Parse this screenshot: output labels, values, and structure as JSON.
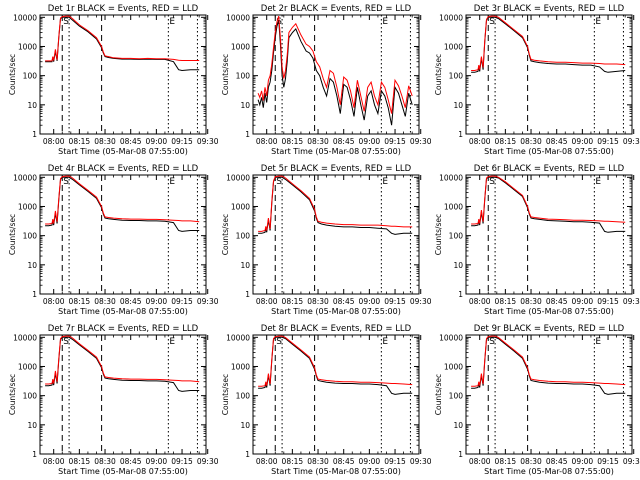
{
  "colors": {
    "events": "#000000",
    "lld": "#ff0000",
    "background": "#ffffff",
    "axis": "#000000"
  },
  "shared": {
    "title_suffix": "BLACK = Events, RED = LLD",
    "xlabel": "Start Time (05-Mar-08 07:55:00)",
    "ylabel": "Counts/sec",
    "x_ticks": [
      "08:00",
      "08:15",
      "08:30",
      "08:45",
      "09:00",
      "09:15",
      "09:30"
    ],
    "y_ticks": [
      "1",
      "10",
      "100",
      "1000",
      "10000"
    ],
    "ylim": [
      1,
      12000
    ],
    "yscale": "log",
    "xlim_minutes": [
      -3,
      94
    ],
    "markers": [
      {
        "label": "S",
        "linestyle": "dashed",
        "x": 10
      },
      {
        "label": "",
        "linestyle": "dotted",
        "x": 14
      },
      {
        "label": "",
        "linestyle": "dashed",
        "x": 33
      },
      {
        "label": "E",
        "linestyle": "dotted",
        "x": 72
      },
      {
        "label": "",
        "linestyle": "dotted",
        "x": 89
      }
    ]
  },
  "chart_data": [
    {
      "title": "Det 1r",
      "type": "line",
      "x_minutes": [
        0,
        2,
        4,
        4.5,
        5,
        6,
        7,
        8,
        9,
        10,
        12,
        14,
        16,
        20,
        25,
        30,
        33,
        34,
        35,
        37,
        40,
        45,
        50,
        55,
        60,
        65,
        70,
        75,
        78,
        80,
        85,
        90
      ],
      "series": [
        {
          "name": "BLACK = Events",
          "values": [
            300,
            300,
            300,
            420,
            300,
            700,
            320,
            2000,
            9000,
            10000,
            10000,
            10000,
            8000,
            5000,
            3200,
            1800,
            900,
            600,
            450,
            420,
            390,
            370,
            370,
            360,
            370,
            360,
            360,
            300,
            160,
            150,
            160,
            160
          ]
        },
        {
          "name": "RED = LLD",
          "values": [
            320,
            320,
            320,
            450,
            330,
            800,
            350,
            2200,
            9500,
            10500,
            11000,
            11000,
            9000,
            5500,
            3500,
            2000,
            1000,
            650,
            480,
            450,
            410,
            390,
            390,
            380,
            390,
            380,
            380,
            360,
            340,
            330,
            330,
            330
          ]
        }
      ]
    },
    {
      "title": "Det 2r",
      "type": "line",
      "x_minutes": [
        0,
        1,
        2,
        3,
        4,
        5,
        6,
        7,
        8,
        9,
        10,
        11,
        12,
        13,
        14,
        15,
        16,
        17,
        18,
        20,
        22,
        25,
        28,
        30,
        32,
        34,
        36,
        38,
        40,
        42,
        44,
        46,
        48,
        50,
        52,
        54,
        56,
        58,
        60,
        62,
        64,
        66,
        68,
        70,
        72,
        74,
        76,
        78,
        80,
        82,
        84,
        86,
        88,
        90
      ],
      "series": [
        {
          "name": "BLACK = Events",
          "values": [
            15,
            10,
            18,
            8,
            25,
            12,
            40,
            60,
            150,
            600,
            2000,
            5000,
            8000,
            1200,
            100,
            40,
            80,
            300,
            2000,
            3000,
            4000,
            1500,
            700,
            600,
            400,
            150,
            100,
            40,
            20,
            80,
            60,
            20,
            5,
            50,
            40,
            15,
            4,
            40,
            10,
            3,
            20,
            30,
            10,
            5,
            30,
            20,
            8,
            2,
            40,
            25,
            10,
            4,
            25,
            10
          ]
        },
        {
          "name": "RED = LLD",
          "values": [
            25,
            18,
            30,
            14,
            40,
            20,
            70,
            100,
            250,
            900,
            3000,
            7000,
            11000,
            2000,
            200,
            80,
            150,
            500,
            3000,
            4500,
            6000,
            2500,
            1200,
            1000,
            700,
            300,
            200,
            80,
            40,
            150,
            120,
            40,
            10,
            90,
            70,
            30,
            8,
            70,
            20,
            6,
            40,
            60,
            20,
            10,
            60,
            40,
            15,
            5,
            70,
            45,
            20,
            8,
            45,
            20
          ]
        }
      ]
    },
    {
      "title": "Det 3r",
      "type": "line",
      "x_minutes": [
        0,
        2,
        4,
        4.5,
        5,
        6,
        7,
        8,
        9,
        10,
        12,
        14,
        16,
        20,
        25,
        30,
        33,
        34,
        35,
        37,
        40,
        45,
        50,
        55,
        60,
        65,
        70,
        75,
        78,
        80,
        85,
        90
      ],
      "series": [
        {
          "name": "BLACK = Events",
          "values": [
            130,
            130,
            140,
            200,
            140,
            400,
            160,
            1500,
            8000,
            10000,
            10000,
            10000,
            9000,
            6000,
            3500,
            2000,
            900,
            500,
            320,
            300,
            280,
            260,
            250,
            250,
            240,
            230,
            230,
            200,
            140,
            130,
            140,
            150
          ]
        },
        {
          "name": "RED = LLD",
          "values": [
            150,
            150,
            160,
            230,
            160,
            450,
            190,
            1700,
            8500,
            10500,
            11000,
            11000,
            10000,
            6500,
            3800,
            2200,
            1000,
            550,
            360,
            340,
            320,
            300,
            290,
            290,
            280,
            270,
            270,
            260,
            250,
            250,
            250,
            240
          ]
        }
      ]
    },
    {
      "title": "Det 4r",
      "type": "line",
      "x_minutes": [
        0,
        2,
        4,
        4.5,
        5,
        6,
        7,
        8,
        9,
        10,
        12,
        14,
        16,
        20,
        25,
        30,
        33,
        34,
        35,
        37,
        40,
        45,
        50,
        55,
        60,
        65,
        70,
        75,
        78,
        80,
        85,
        90
      ],
      "series": [
        {
          "name": "BLACK = Events",
          "values": [
            220,
            220,
            230,
            330,
            230,
            600,
            260,
            1700,
            8500,
            10000,
            10000,
            10000,
            8500,
            5500,
            3300,
            1900,
            900,
            550,
            400,
            380,
            360,
            340,
            330,
            330,
            320,
            320,
            310,
            280,
            150,
            140,
            150,
            150
          ]
        },
        {
          "name": "RED = LLD",
          "values": [
            250,
            250,
            260,
            370,
            260,
            700,
            300,
            1900,
            9000,
            10500,
            11000,
            11000,
            9500,
            6000,
            3600,
            2100,
            1000,
            600,
            440,
            420,
            400,
            380,
            370,
            370,
            360,
            360,
            350,
            340,
            330,
            320,
            320,
            300
          ]
        }
      ]
    },
    {
      "title": "Det 5r",
      "type": "line",
      "x_minutes": [
        0,
        2,
        4,
        4.5,
        5,
        6,
        7,
        8,
        9,
        10,
        12,
        14,
        16,
        20,
        25,
        30,
        33,
        34,
        35,
        37,
        40,
        45,
        50,
        55,
        60,
        65,
        70,
        75,
        78,
        80,
        85,
        90
      ],
      "series": [
        {
          "name": "BLACK = Events",
          "values": [
            120,
            120,
            130,
            180,
            130,
            350,
            150,
            1300,
            7000,
            10000,
            10000,
            10000,
            8500,
            5500,
            3200,
            1700,
            700,
            400,
            280,
            250,
            230,
            210,
            200,
            200,
            190,
            190,
            180,
            170,
            120,
            110,
            120,
            120
          ]
        },
        {
          "name": "RED = LLD",
          "values": [
            140,
            140,
            150,
            210,
            150,
            400,
            170,
            1500,
            7500,
            10500,
            11000,
            11000,
            9500,
            6000,
            3500,
            1900,
            800,
            440,
            310,
            290,
            270,
            250,
            240,
            240,
            230,
            230,
            230,
            220,
            210,
            210,
            200,
            200
          ]
        }
      ]
    },
    {
      "title": "Det 6r",
      "type": "line",
      "x_minutes": [
        0,
        2,
        4,
        4.5,
        5,
        6,
        7,
        8,
        9,
        10,
        12,
        14,
        16,
        20,
        25,
        30,
        33,
        34,
        35,
        37,
        40,
        45,
        50,
        55,
        60,
        65,
        70,
        75,
        78,
        80,
        85,
        90
      ],
      "series": [
        {
          "name": "BLACK = Events",
          "values": [
            220,
            220,
            230,
            330,
            230,
            650,
            260,
            1800,
            9000,
            10000,
            10000,
            10000,
            9500,
            6500,
            3800,
            2200,
            900,
            550,
            400,
            380,
            360,
            330,
            320,
            310,
            300,
            300,
            290,
            270,
            140,
            130,
            140,
            140
          ]
        },
        {
          "name": "RED = LLD",
          "values": [
            250,
            250,
            260,
            370,
            260,
            750,
            300,
            2000,
            9500,
            10500,
            11000,
            11000,
            10000,
            7000,
            4100,
            2400,
            1000,
            600,
            440,
            420,
            400,
            370,
            360,
            350,
            340,
            340,
            330,
            320,
            310,
            310,
            300,
            290
          ]
        }
      ]
    },
    {
      "title": "Det 7r",
      "type": "line",
      "x_minutes": [
        0,
        2,
        4,
        4.5,
        5,
        6,
        7,
        8,
        9,
        10,
        12,
        14,
        16,
        20,
        25,
        30,
        33,
        34,
        35,
        37,
        40,
        45,
        50,
        55,
        60,
        65,
        70,
        75,
        78,
        80,
        85,
        90
      ],
      "series": [
        {
          "name": "BLACK = Events",
          "values": [
            220,
            220,
            230,
            330,
            230,
            600,
            260,
            1700,
            8500,
            10000,
            10000,
            10000,
            8500,
            5500,
            3300,
            1900,
            900,
            550,
            400,
            380,
            360,
            340,
            330,
            330,
            320,
            320,
            310,
            280,
            150,
            140,
            150,
            150
          ]
        },
        {
          "name": "RED = LLD",
          "values": [
            250,
            250,
            260,
            370,
            260,
            700,
            300,
            1900,
            9000,
            10500,
            11000,
            11000,
            9500,
            6000,
            3600,
            2100,
            1000,
            600,
            440,
            420,
            400,
            380,
            370,
            370,
            360,
            360,
            350,
            340,
            330,
            320,
            320,
            300
          ]
        }
      ]
    },
    {
      "title": "Det 8r",
      "type": "line",
      "x_minutes": [
        0,
        2,
        4,
        4.5,
        5,
        6,
        7,
        8,
        9,
        10,
        12,
        14,
        16,
        20,
        25,
        30,
        33,
        34,
        35,
        37,
        40,
        45,
        50,
        55,
        60,
        65,
        70,
        75,
        78,
        80,
        85,
        90
      ],
      "series": [
        {
          "name": "BLACK = Events",
          "values": [
            180,
            180,
            190,
            270,
            190,
            500,
            220,
            1600,
            8500,
            10000,
            10000,
            10000,
            9000,
            5800,
            3400,
            1900,
            800,
            480,
            330,
            310,
            290,
            270,
            260,
            260,
            250,
            250,
            240,
            220,
            120,
            110,
            120,
            120
          ]
        },
        {
          "name": "RED = LLD",
          "values": [
            210,
            210,
            220,
            300,
            220,
            570,
            250,
            1800,
            9000,
            10500,
            11000,
            11000,
            9800,
            6300,
            3700,
            2100,
            900,
            520,
            370,
            350,
            330,
            310,
            300,
            300,
            290,
            290,
            280,
            270,
            260,
            260,
            250,
            240
          ]
        }
      ]
    },
    {
      "title": "Det 9r",
      "type": "line",
      "x_minutes": [
        0,
        2,
        4,
        4.5,
        5,
        6,
        7,
        8,
        9,
        10,
        12,
        14,
        16,
        20,
        25,
        30,
        33,
        34,
        35,
        37,
        40,
        45,
        50,
        55,
        60,
        65,
        70,
        75,
        78,
        80,
        85,
        90
      ],
      "series": [
        {
          "name": "BLACK = Events",
          "values": [
            180,
            180,
            190,
            270,
            190,
            500,
            220,
            1600,
            8500,
            10000,
            10000,
            10000,
            9000,
            5800,
            3400,
            1900,
            800,
            480,
            330,
            310,
            290,
            270,
            260,
            260,
            250,
            250,
            240,
            220,
            120,
            110,
            120,
            120
          ]
        },
        {
          "name": "RED = LLD",
          "values": [
            210,
            210,
            220,
            300,
            220,
            570,
            250,
            1800,
            9000,
            10500,
            11000,
            11000,
            9800,
            6300,
            3700,
            2100,
            900,
            520,
            370,
            350,
            330,
            310,
            300,
            300,
            290,
            290,
            280,
            270,
            260,
            260,
            250,
            240
          ]
        }
      ]
    }
  ]
}
